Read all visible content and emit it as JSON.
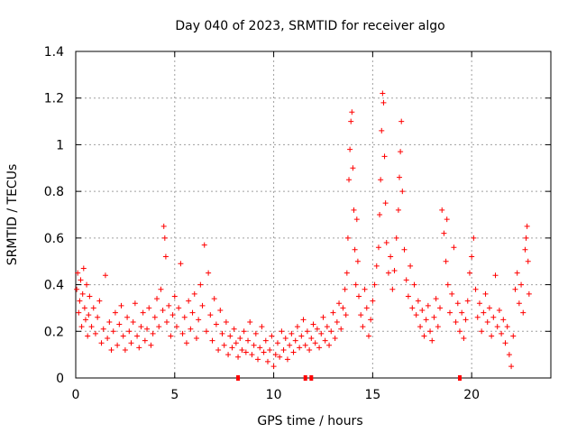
{
  "chart_data": {
    "type": "scatter",
    "title": "Day 040 of 2023, SRMTID for receiver algo",
    "xlabel": "GPS time / hours",
    "ylabel": "SRMTID / TECUs",
    "xlim": [
      0,
      24
    ],
    "ylim": [
      0,
      1.4
    ],
    "xticks": [
      0,
      5,
      10,
      15,
      20
    ],
    "xtick_labels": [
      "0",
      "5",
      "10",
      "15",
      "20"
    ],
    "yticks": [
      0,
      0.2,
      0.4,
      0.6,
      0.8,
      1.0,
      1.2,
      1.4
    ],
    "ytick_labels": [
      "0",
      "0.2",
      "0.4",
      "0.6",
      "0.8",
      "1",
      "1.2",
      "1.4"
    ],
    "grid": true,
    "marker": "+",
    "series_color": "#ff0000",
    "baseline_markers": [
      8.2,
      11.6,
      11.9,
      19.4
    ],
    "series": [
      {
        "name": "SRMTID",
        "points": [
          [
            0.05,
            0.38
          ],
          [
            0.1,
            0.45
          ],
          [
            0.15,
            0.28
          ],
          [
            0.2,
            0.33
          ],
          [
            0.25,
            0.42
          ],
          [
            0.3,
            0.22
          ],
          [
            0.35,
            0.36
          ],
          [
            0.4,
            0.47
          ],
          [
            0.45,
            0.3
          ],
          [
            0.5,
            0.25
          ],
          [
            0.55,
            0.4
          ],
          [
            0.6,
            0.18
          ],
          [
            0.65,
            0.27
          ],
          [
            0.7,
            0.35
          ],
          [
            0.8,
            0.22
          ],
          [
            0.9,
            0.3
          ],
          [
            1.0,
            0.19
          ],
          [
            1.1,
            0.26
          ],
          [
            1.2,
            0.33
          ],
          [
            1.3,
            0.15
          ],
          [
            1.4,
            0.21
          ],
          [
            1.5,
            0.44
          ],
          [
            1.6,
            0.17
          ],
          [
            1.7,
            0.24
          ],
          [
            1.8,
            0.12
          ],
          [
            1.9,
            0.2
          ],
          [
            2.0,
            0.28
          ],
          [
            2.1,
            0.14
          ],
          [
            2.2,
            0.23
          ],
          [
            2.3,
            0.31
          ],
          [
            2.4,
            0.18
          ],
          [
            2.5,
            0.12
          ],
          [
            2.6,
            0.26
          ],
          [
            2.7,
            0.2
          ],
          [
            2.8,
            0.15
          ],
          [
            2.9,
            0.24
          ],
          [
            3.0,
            0.32
          ],
          [
            3.1,
            0.18
          ],
          [
            3.2,
            0.13
          ],
          [
            3.3,
            0.22
          ],
          [
            3.4,
            0.28
          ],
          [
            3.5,
            0.16
          ],
          [
            3.6,
            0.21
          ],
          [
            3.7,
            0.3
          ],
          [
            3.8,
            0.14
          ],
          [
            3.9,
            0.19
          ],
          [
            4.0,
            0.26
          ],
          [
            4.1,
            0.34
          ],
          [
            4.2,
            0.22
          ],
          [
            4.3,
            0.38
          ],
          [
            4.4,
            0.29
          ],
          [
            4.45,
            0.65
          ],
          [
            4.5,
            0.6
          ],
          [
            4.55,
            0.52
          ],
          [
            4.6,
            0.24
          ],
          [
            4.7,
            0.31
          ],
          [
            4.8,
            0.18
          ],
          [
            4.9,
            0.27
          ],
          [
            5.0,
            0.35
          ],
          [
            5.1,
            0.22
          ],
          [
            5.2,
            0.3
          ],
          [
            5.3,
            0.49
          ],
          [
            5.4,
            0.19
          ],
          [
            5.5,
            0.26
          ],
          [
            5.6,
            0.15
          ],
          [
            5.7,
            0.33
          ],
          [
            5.8,
            0.21
          ],
          [
            5.9,
            0.28
          ],
          [
            6.0,
            0.36
          ],
          [
            6.1,
            0.17
          ],
          [
            6.2,
            0.25
          ],
          [
            6.3,
            0.4
          ],
          [
            6.4,
            0.31
          ],
          [
            6.5,
            0.57
          ],
          [
            6.6,
            0.2
          ],
          [
            6.7,
            0.45
          ],
          [
            6.8,
            0.27
          ],
          [
            6.9,
            0.16
          ],
          [
            7.0,
            0.34
          ],
          [
            7.1,
            0.23
          ],
          [
            7.2,
            0.12
          ],
          [
            7.3,
            0.29
          ],
          [
            7.4,
            0.19
          ],
          [
            7.5,
            0.14
          ],
          [
            7.6,
            0.24
          ],
          [
            7.7,
            0.1
          ],
          [
            7.8,
            0.18
          ],
          [
            7.9,
            0.13
          ],
          [
            8.0,
            0.21
          ],
          [
            8.1,
            0.15
          ],
          [
            8.2,
            0.09
          ],
          [
            8.3,
            0.17
          ],
          [
            8.4,
            0.12
          ],
          [
            8.5,
            0.2
          ],
          [
            8.6,
            0.11
          ],
          [
            8.7,
            0.16
          ],
          [
            8.8,
            0.24
          ],
          [
            8.9,
            0.1
          ],
          [
            9.0,
            0.14
          ],
          [
            9.1,
            0.19
          ],
          [
            9.2,
            0.08
          ],
          [
            9.3,
            0.13
          ],
          [
            9.4,
            0.22
          ],
          [
            9.5,
            0.11
          ],
          [
            9.6,
            0.16
          ],
          [
            9.7,
            0.07
          ],
          [
            9.8,
            0.12
          ],
          [
            9.9,
            0.18
          ],
          [
            10.0,
            0.05
          ],
          [
            10.1,
            0.1
          ],
          [
            10.2,
            0.15
          ],
          [
            10.3,
            0.09
          ],
          [
            10.4,
            0.2
          ],
          [
            10.5,
            0.12
          ],
          [
            10.6,
            0.17
          ],
          [
            10.7,
            0.08
          ],
          [
            10.8,
            0.14
          ],
          [
            10.9,
            0.19
          ],
          [
            11.0,
            0.11
          ],
          [
            11.1,
            0.16
          ],
          [
            11.2,
            0.22
          ],
          [
            11.3,
            0.13
          ],
          [
            11.4,
            0.18
          ],
          [
            11.5,
            0.25
          ],
          [
            11.6,
            0.14
          ],
          [
            11.7,
            0.2
          ],
          [
            11.8,
            0.12
          ],
          [
            11.9,
            0.17
          ],
          [
            12.0,
            0.23
          ],
          [
            12.1,
            0.15
          ],
          [
            12.2,
            0.21
          ],
          [
            12.3,
            0.13
          ],
          [
            12.4,
            0.19
          ],
          [
            12.5,
            0.26
          ],
          [
            12.6,
            0.16
          ],
          [
            12.7,
            0.22
          ],
          [
            12.8,
            0.14
          ],
          [
            12.9,
            0.2
          ],
          [
            13.0,
            0.28
          ],
          [
            13.1,
            0.17
          ],
          [
            13.2,
            0.24
          ],
          [
            13.3,
            0.32
          ],
          [
            13.4,
            0.21
          ],
          [
            13.5,
            0.3
          ],
          [
            13.6,
            0.38
          ],
          [
            13.65,
            0.27
          ],
          [
            13.7,
            0.45
          ],
          [
            13.75,
            0.6
          ],
          [
            13.8,
            0.85
          ],
          [
            13.85,
            0.98
          ],
          [
            13.9,
            1.1
          ],
          [
            13.95,
            1.14
          ],
          [
            14.0,
            0.9
          ],
          [
            14.05,
            0.72
          ],
          [
            14.1,
            0.55
          ],
          [
            14.15,
            0.4
          ],
          [
            14.2,
            0.68
          ],
          [
            14.25,
            0.5
          ],
          [
            14.3,
            0.35
          ],
          [
            14.4,
            0.27
          ],
          [
            14.5,
            0.22
          ],
          [
            14.6,
            0.38
          ],
          [
            14.7,
            0.3
          ],
          [
            14.8,
            0.18
          ],
          [
            14.9,
            0.25
          ],
          [
            15.0,
            0.33
          ],
          [
            15.1,
            0.4
          ],
          [
            15.2,
            0.48
          ],
          [
            15.3,
            0.56
          ],
          [
            15.35,
            0.7
          ],
          [
            15.4,
            0.85
          ],
          [
            15.45,
            1.06
          ],
          [
            15.5,
            1.22
          ],
          [
            15.55,
            1.18
          ],
          [
            15.6,
            0.95
          ],
          [
            15.65,
            0.75
          ],
          [
            15.7,
            0.58
          ],
          [
            15.8,
            0.45
          ],
          [
            15.9,
            0.52
          ],
          [
            16.0,
            0.38
          ],
          [
            16.1,
            0.46
          ],
          [
            16.2,
            0.6
          ],
          [
            16.3,
            0.72
          ],
          [
            16.35,
            0.86
          ],
          [
            16.4,
            0.97
          ],
          [
            16.45,
            1.1
          ],
          [
            16.5,
            0.8
          ],
          [
            16.6,
            0.55
          ],
          [
            16.7,
            0.42
          ],
          [
            16.8,
            0.35
          ],
          [
            16.9,
            0.48
          ],
          [
            17.0,
            0.3
          ],
          [
            17.1,
            0.4
          ],
          [
            17.2,
            0.27
          ],
          [
            17.3,
            0.33
          ],
          [
            17.4,
            0.22
          ],
          [
            17.5,
            0.29
          ],
          [
            17.6,
            0.18
          ],
          [
            17.7,
            0.25
          ],
          [
            17.8,
            0.31
          ],
          [
            17.9,
            0.2
          ],
          [
            18.0,
            0.16
          ],
          [
            18.1,
            0.26
          ],
          [
            18.2,
            0.34
          ],
          [
            18.3,
            0.22
          ],
          [
            18.4,
            0.3
          ],
          [
            18.5,
            0.72
          ],
          [
            18.6,
            0.62
          ],
          [
            18.7,
            0.5
          ],
          [
            18.75,
            0.68
          ],
          [
            18.8,
            0.4
          ],
          [
            18.9,
            0.28
          ],
          [
            19.0,
            0.36
          ],
          [
            19.1,
            0.56
          ],
          [
            19.2,
            0.24
          ],
          [
            19.3,
            0.32
          ],
          [
            19.4,
            0.2
          ],
          [
            19.5,
            0.28
          ],
          [
            19.6,
            0.17
          ],
          [
            19.7,
            0.25
          ],
          [
            19.8,
            0.33
          ],
          [
            19.9,
            0.45
          ],
          [
            20.0,
            0.52
          ],
          [
            20.1,
            0.6
          ],
          [
            20.2,
            0.38
          ],
          [
            20.3,
            0.26
          ],
          [
            20.4,
            0.32
          ],
          [
            20.5,
            0.2
          ],
          [
            20.6,
            0.28
          ],
          [
            20.7,
            0.36
          ],
          [
            20.8,
            0.24
          ],
          [
            20.9,
            0.3
          ],
          [
            21.0,
            0.18
          ],
          [
            21.1,
            0.26
          ],
          [
            21.2,
            0.44
          ],
          [
            21.3,
            0.22
          ],
          [
            21.4,
            0.29
          ],
          [
            21.5,
            0.19
          ],
          [
            21.6,
            0.25
          ],
          [
            21.7,
            0.15
          ],
          [
            21.8,
            0.22
          ],
          [
            21.9,
            0.1
          ],
          [
            22.0,
            0.05
          ],
          [
            22.1,
            0.18
          ],
          [
            22.2,
            0.38
          ],
          [
            22.3,
            0.45
          ],
          [
            22.4,
            0.32
          ],
          [
            22.5,
            0.4
          ],
          [
            22.6,
            0.28
          ],
          [
            22.7,
            0.55
          ],
          [
            22.75,
            0.6
          ],
          [
            22.8,
            0.65
          ],
          [
            22.85,
            0.5
          ],
          [
            22.9,
            0.36
          ]
        ]
      }
    ]
  }
}
